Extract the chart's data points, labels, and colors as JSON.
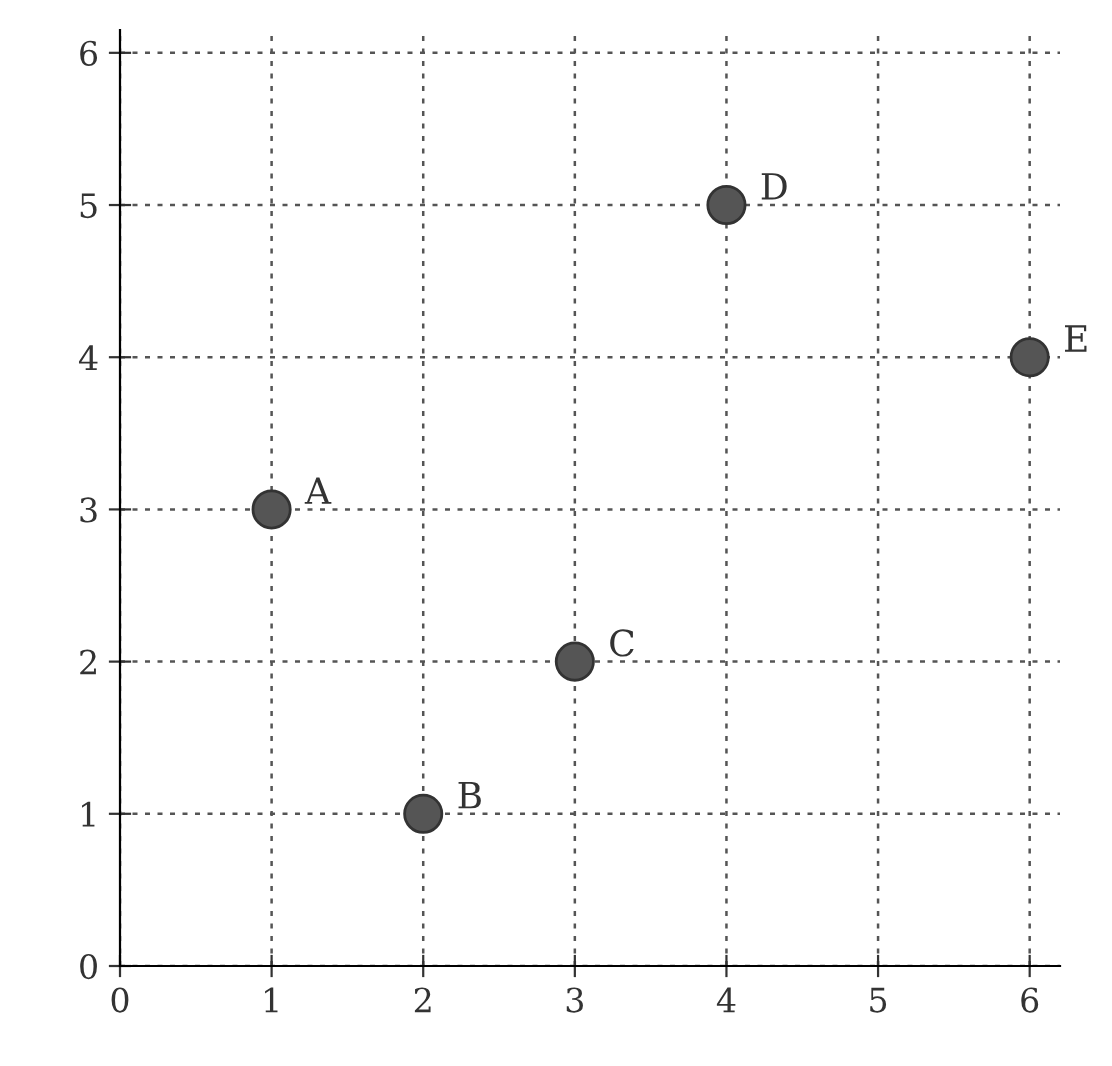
{
  "chart_data": {
    "type": "scatter",
    "x": [
      1,
      2,
      3,
      4,
      6
    ],
    "values": [
      3,
      1,
      2,
      5,
      4
    ],
    "color": "#555555",
    "marker": "circle",
    "xlim": [
      0,
      6.2
    ],
    "ylim": [
      0,
      6.15
    ],
    "xticks": [
      0,
      1,
      2,
      3,
      4,
      5,
      6
    ],
    "yticks": [
      0,
      1,
      2,
      3,
      4,
      5,
      6
    ],
    "grid": true,
    "annotations": [
      {
        "text": "A",
        "x": 1,
        "y": 3
      },
      {
        "text": "B",
        "x": 2,
        "y": 1
      },
      {
        "text": "C",
        "x": 3,
        "y": 2
      },
      {
        "text": "D",
        "x": 4,
        "y": 5
      },
      {
        "text": "E",
        "x": 6,
        "y": 4
      }
    ]
  }
}
